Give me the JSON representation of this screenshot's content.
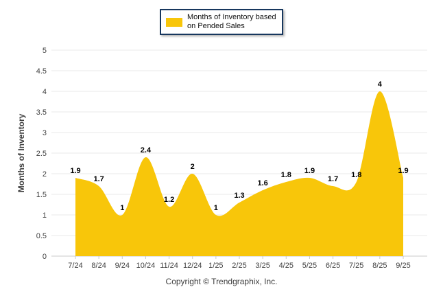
{
  "legend": {
    "label_line1": "Months of Inventory based",
    "label_line2": "on Pended Sales"
  },
  "footer": {
    "text": "Copyright © Trendgraphix, Inc."
  },
  "chart_data": {
    "type": "area",
    "title": "",
    "categories": [
      "7/24",
      "8/24",
      "9/24",
      "10/24",
      "11/24",
      "12/24",
      "1/25",
      "2/25",
      "3/25",
      "4/25",
      "5/25",
      "6/25",
      "7/25",
      "8/25",
      "9/25"
    ],
    "series": [
      {
        "name": "Months of Inventory based on Pended Sales",
        "values": [
          1.9,
          1.7,
          1,
          2.4,
          1.2,
          2,
          1,
          1.3,
          1.6,
          1.8,
          1.9,
          1.7,
          1.8,
          4,
          1.9
        ]
      }
    ],
    "xlabel": "",
    "ylabel": "Months of Inventory",
    "ylim": [
      0,
      5
    ],
    "ytick_step": 0.5,
    "grid": "horizontal",
    "legend_position": "top-center",
    "data_labels": true,
    "colors": {
      "area": "#F8C60A",
      "gridline": "#E9E9E9",
      "axis_line": "#C8C8C8",
      "tick_label": "#3F3F3F",
      "data_label": "#000000",
      "legend_border": "#17375E"
    }
  }
}
